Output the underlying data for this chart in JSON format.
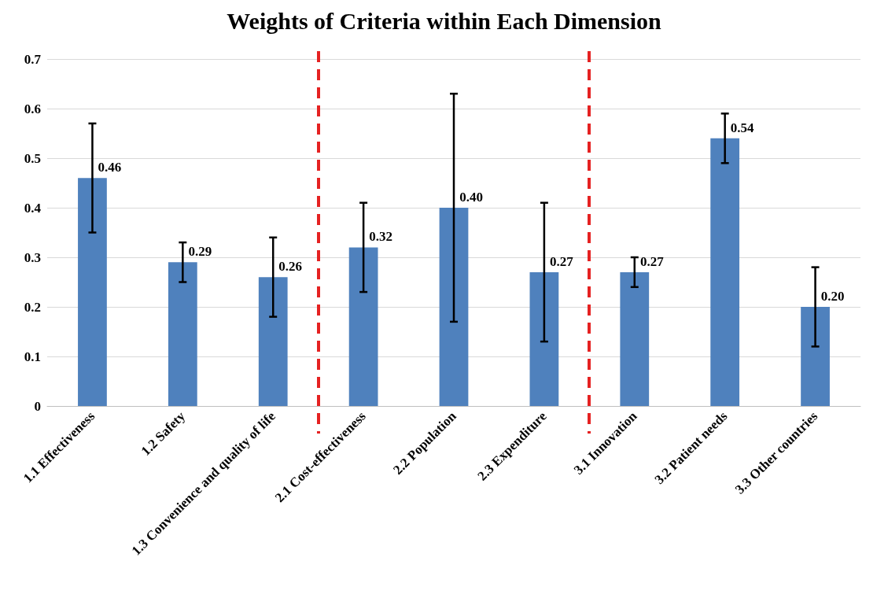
{
  "chart_data": {
    "type": "bar",
    "title": "Weights of Criteria within Each Dimension",
    "categories": [
      "1.1 Effectiveness",
      "1.2 Safety",
      "1.3 Convenience and quality of life",
      "2.1 Cost-effectiveness",
      "2.2 Population",
      "2.3 Expenditure",
      "3.1 Innovation",
      "3.2 Patient needs",
      "3.3 Other countries"
    ],
    "values": [
      0.46,
      0.29,
      0.26,
      0.32,
      0.4,
      0.27,
      0.27,
      0.54,
      0.2
    ],
    "errors": [
      [
        0.35,
        0.57
      ],
      [
        0.25,
        0.33
      ],
      [
        0.18,
        0.34
      ],
      [
        0.23,
        0.41
      ],
      [
        0.17,
        0.63
      ],
      [
        0.13,
        0.41
      ],
      [
        0.24,
        0.3
      ],
      [
        0.49,
        0.59
      ],
      [
        0.12,
        0.28
      ]
    ],
    "color": "#4f81bd",
    "ylim": [
      0,
      0.7
    ],
    "yticks": [
      0,
      0.1,
      0.2,
      0.3,
      0.4,
      0.5,
      0.6,
      0.7
    ],
    "value_labels": [
      "0.46",
      "0.29",
      "0.26",
      "0.32",
      "0.40",
      "0.27",
      "0.27",
      "0.54",
      "0.20"
    ],
    "grid": "y"
  }
}
